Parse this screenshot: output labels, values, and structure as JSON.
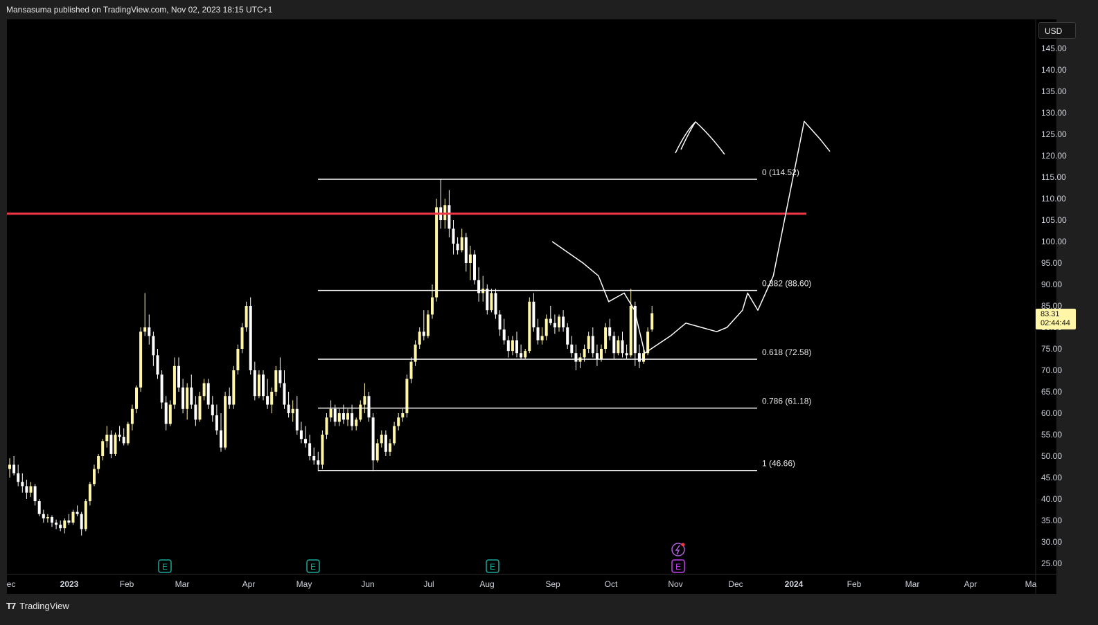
{
  "header": {
    "published_text": "Mansasuma published on TradingView.com, Nov 02, 2023 18:15 UTC+1"
  },
  "footer": {
    "logo_text": "TradingView",
    "logo_icon": "tradingview-logo-icon"
  },
  "price_axis": {
    "currency": "USD",
    "ticks": [
      "145.00",
      "140.00",
      "135.00",
      "130.00",
      "125.00",
      "120.00",
      "115.00",
      "110.00",
      "105.00",
      "100.00",
      "95.00",
      "90.00",
      "85.00",
      "80.00",
      "75.00",
      "70.00",
      "65.00",
      "60.00",
      "55.00",
      "50.00",
      "45.00",
      "40.00",
      "35.00",
      "30.00",
      "25.00"
    ],
    "last_price": "83.31",
    "countdown": "02:44:44",
    "last_price_color": "#fff6a8"
  },
  "chart_data": {
    "type": "candlestick",
    "x_ticks": [
      "ec",
      "2023",
      "Feb",
      "Mar",
      "Apr",
      "May",
      "Jun",
      "Jul",
      "Aug",
      "Sep",
      "Oct",
      "Nov",
      "Dec",
      "2024",
      "Feb",
      "Mar",
      "Apr",
      "Ma"
    ],
    "ylim": [
      22,
      149
    ],
    "series_color": "#fff6a8",
    "candles": [
      [
        47,
        49.5,
        45,
        48
      ],
      [
        48,
        50,
        45.5,
        46
      ],
      [
        46,
        48,
        43,
        44
      ],
      [
        44,
        46,
        41.5,
        43
      ],
      [
        43,
        44.5,
        40,
        41.5
      ],
      [
        41.5,
        44,
        40.5,
        43
      ],
      [
        43,
        43.5,
        38.5,
        39.5
      ],
      [
        39.5,
        40,
        36,
        36.5
      ],
      [
        36.5,
        37.5,
        34.5,
        35.5
      ],
      [
        35.5,
        36.5,
        34.5,
        35.8
      ],
      [
        35.8,
        36.2,
        33.5,
        34.5
      ],
      [
        34.5,
        35.2,
        33,
        34
      ],
      [
        34,
        35,
        32.5,
        33.2
      ],
      [
        33.2,
        35.5,
        32,
        35
      ],
      [
        35,
        36.5,
        34,
        34.5
      ],
      [
        34.5,
        37.5,
        34,
        37
      ],
      [
        37,
        38.5,
        36,
        36.5
      ],
      [
        36.5,
        37,
        31.5,
        33
      ],
      [
        33,
        40,
        32.5,
        39.5
      ],
      [
        39.5,
        44,
        38.5,
        43.5
      ],
      [
        43.5,
        48,
        43,
        47
      ],
      [
        47,
        50.5,
        46,
        50
      ],
      [
        50,
        54,
        49,
        53.5
      ],
      [
        53.5,
        57,
        52,
        55
      ],
      [
        55,
        56,
        49.5,
        50.5
      ],
      [
        50.5,
        55.5,
        50,
        55
      ],
      [
        55,
        57,
        53.5,
        54.5
      ],
      [
        54.5,
        56.5,
        52.5,
        53
      ],
      [
        53,
        58,
        52.5,
        57.5
      ],
      [
        57.5,
        62,
        56,
        61
      ],
      [
        61,
        66.5,
        60,
        66
      ],
      [
        66,
        80,
        65,
        79
      ],
      [
        79,
        88,
        78,
        80
      ],
      [
        80,
        83,
        76,
        78
      ],
      [
        78,
        79,
        71,
        73.5
      ],
      [
        73.5,
        75,
        68,
        69
      ],
      [
        69,
        70,
        61,
        62.5
      ],
      [
        62.5,
        64,
        56,
        57.5
      ],
      [
        57.5,
        63,
        57,
        62
      ],
      [
        62,
        73,
        61,
        71
      ],
      [
        71,
        73,
        65,
        66
      ],
      [
        66,
        68,
        60,
        61
      ],
      [
        61,
        67,
        58.5,
        66
      ],
      [
        66,
        69,
        61,
        62
      ],
      [
        62,
        64,
        57,
        58.5
      ],
      [
        58.5,
        65,
        58,
        64
      ],
      [
        64,
        68,
        63,
        67
      ],
      [
        67,
        68,
        61,
        62
      ],
      [
        62,
        64,
        58,
        59.5
      ],
      [
        59.5,
        62,
        55,
        56
      ],
      [
        56,
        60,
        51,
        52
      ],
      [
        52,
        65,
        51.5,
        64
      ],
      [
        64,
        66,
        61,
        62
      ],
      [
        62,
        71,
        61,
        70
      ],
      [
        70,
        76,
        69,
        75
      ],
      [
        75,
        81,
        74,
        80
      ],
      [
        80,
        86,
        79,
        85
      ],
      [
        85,
        87,
        69,
        70
      ],
      [
        70,
        72,
        63,
        64
      ],
      [
        64,
        70,
        63.5,
        69
      ],
      [
        69,
        70,
        63,
        64
      ],
      [
        64,
        68,
        61,
        62
      ],
      [
        62,
        66,
        60,
        65
      ],
      [
        65,
        71,
        64,
        70
      ],
      [
        70,
        73,
        66,
        67
      ],
      [
        67,
        70,
        61,
        62
      ],
      [
        62,
        65,
        59,
        60
      ],
      [
        60,
        63,
        58,
        61
      ],
      [
        61,
        64,
        55,
        56
      ],
      [
        56,
        58,
        53,
        54
      ],
      [
        54,
        57,
        52,
        53
      ],
      [
        53,
        55,
        49,
        50
      ],
      [
        50,
        52,
        48,
        49
      ],
      [
        49,
        51,
        46.5,
        48
      ],
      [
        48,
        56,
        47,
        55
      ],
      [
        55,
        60,
        54,
        59
      ],
      [
        59,
        63,
        58,
        61
      ],
      [
        61,
        62,
        57,
        58
      ],
      [
        58,
        61,
        57,
        60
      ],
      [
        60,
        62,
        57.5,
        58.5
      ],
      [
        58.5,
        61,
        57,
        60
      ],
      [
        60,
        62,
        56,
        57
      ],
      [
        57,
        59,
        56,
        58.5
      ],
      [
        58.5,
        63,
        58,
        62
      ],
      [
        62,
        67,
        60,
        64
      ],
      [
        64,
        65,
        58,
        59
      ],
      [
        59,
        60,
        46.5,
        49
      ],
      [
        49,
        54,
        48.5,
        53
      ],
      [
        53,
        56,
        52,
        55
      ],
      [
        55,
        56,
        50,
        51
      ],
      [
        51,
        54,
        50,
        53
      ],
      [
        53,
        58,
        52.5,
        57
      ],
      [
        57,
        60,
        56,
        59
      ],
      [
        59,
        61,
        58,
        60
      ],
      [
        60,
        69,
        59,
        68
      ],
      [
        68,
        73,
        67,
        72
      ],
      [
        72,
        77,
        71,
        76
      ],
      [
        76,
        80,
        75,
        79
      ],
      [
        79,
        84,
        77,
        78
      ],
      [
        78,
        84,
        77.5,
        83
      ],
      [
        83,
        90,
        82,
        87
      ],
      [
        87,
        110,
        86,
        108
      ],
      [
        108,
        114.5,
        103,
        105
      ],
      [
        105,
        110,
        103,
        108.5
      ],
      [
        108.5,
        112,
        101,
        103
      ],
      [
        103,
        105,
        97,
        99.5
      ],
      [
        99.5,
        101,
        97,
        98
      ],
      [
        98,
        103,
        97.5,
        101
      ],
      [
        101,
        102,
        93,
        95
      ],
      [
        95,
        99,
        91,
        97
      ],
      [
        97,
        98,
        90,
        91
      ],
      [
        91,
        94,
        86,
        88
      ],
      [
        88,
        92,
        86,
        89
      ],
      [
        89,
        90,
        83,
        84
      ],
      [
        84,
        89,
        83.5,
        88
      ],
      [
        88,
        89,
        82,
        83
      ],
      [
        83,
        84,
        78,
        79.5
      ],
      [
        79.5,
        82,
        76,
        77
      ],
      [
        77,
        78,
        73,
        74.5
      ],
      [
        74.5,
        78,
        73.5,
        77
      ],
      [
        77,
        79,
        73,
        74
      ],
      [
        74,
        76,
        72.5,
        73
      ],
      [
        73,
        75,
        72.5,
        74.5
      ],
      [
        74.5,
        87,
        74,
        86
      ],
      [
        86,
        88,
        79,
        80
      ],
      [
        80,
        82,
        76,
        77
      ],
      [
        77,
        80,
        76,
        78
      ],
      [
        78,
        83,
        77,
        82
      ],
      [
        82,
        85,
        80.5,
        81
      ],
      [
        81,
        83,
        78.5,
        80
      ],
      [
        80,
        83,
        79,
        82.5
      ],
      [
        82.5,
        84,
        79,
        80
      ],
      [
        80,
        81,
        75,
        76
      ],
      [
        76,
        78,
        73,
        74
      ],
      [
        74,
        76,
        70,
        72
      ],
      [
        72,
        74,
        70.5,
        73
      ],
      [
        73,
        76,
        72,
        75
      ],
      [
        75,
        79,
        74,
        78
      ],
      [
        78,
        80,
        73,
        74
      ],
      [
        74,
        76,
        71,
        72.5
      ],
      [
        72.5,
        76,
        72,
        75
      ],
      [
        75,
        81,
        74,
        80
      ],
      [
        80,
        82,
        77,
        78
      ],
      [
        78,
        79,
        72.5,
        74
      ],
      [
        74,
        78,
        73.5,
        77
      ],
      [
        77,
        79,
        73,
        74
      ],
      [
        74,
        76,
        72.5,
        73.5
      ],
      [
        73.5,
        89,
        73,
        85
      ],
      [
        85,
        86,
        71,
        74
      ],
      [
        74,
        76,
        70.5,
        72
      ],
      [
        72,
        75,
        71.5,
        74
      ],
      [
        74,
        80,
        73.5,
        79
      ],
      [
        79.5,
        85,
        79,
        83.3
      ]
    ],
    "fib_levels": [
      {
        "label": "0 (114.52)",
        "value": 114.52
      },
      {
        "label": "0.382 (88.60)",
        "value": 88.6
      },
      {
        "label": "0.618 (72.58)",
        "value": 72.58
      },
      {
        "label": "0.786 (61.18)",
        "value": 61.18
      },
      {
        "label": "1 (46.66)",
        "value": 46.66
      }
    ],
    "resistance_line": {
      "value": 106.5,
      "color": "#f23645"
    },
    "projection_path": [
      [
        0.53,
        100
      ],
      [
        0.56,
        95
      ],
      [
        0.575,
        92
      ],
      [
        0.585,
        86
      ],
      [
        0.6,
        88
      ],
      [
        0.61,
        84
      ],
      [
        0.62,
        74
      ],
      [
        0.645,
        78
      ],
      [
        0.66,
        81
      ],
      [
        0.675,
        80
      ],
      [
        0.69,
        79
      ],
      [
        0.7,
        80
      ],
      [
        0.715,
        84
      ],
      [
        0.72,
        88
      ],
      [
        0.73,
        84
      ],
      [
        0.745,
        92
      ],
      [
        0.76,
        110
      ],
      [
        0.775,
        128
      ],
      [
        0.79,
        124
      ],
      [
        0.8,
        121
      ]
    ],
    "event_markers": [
      {
        "x_index": 13,
        "icon": "earnings-icon",
        "label": "E",
        "color": "#1aa89a"
      },
      {
        "x_index": 28,
        "icon": "earnings-icon",
        "label": "E",
        "color": "#1aa89a"
      },
      {
        "x_index": 45,
        "icon": "earnings-icon",
        "label": "E",
        "color": "#1aa89a"
      },
      {
        "x_index": 62,
        "icon": "earnings-icon",
        "label": "E",
        "color": "#c040f0"
      },
      {
        "x_index": 62,
        "icon": "flash-icon",
        "label": "",
        "color": "#b05fe0"
      }
    ]
  }
}
